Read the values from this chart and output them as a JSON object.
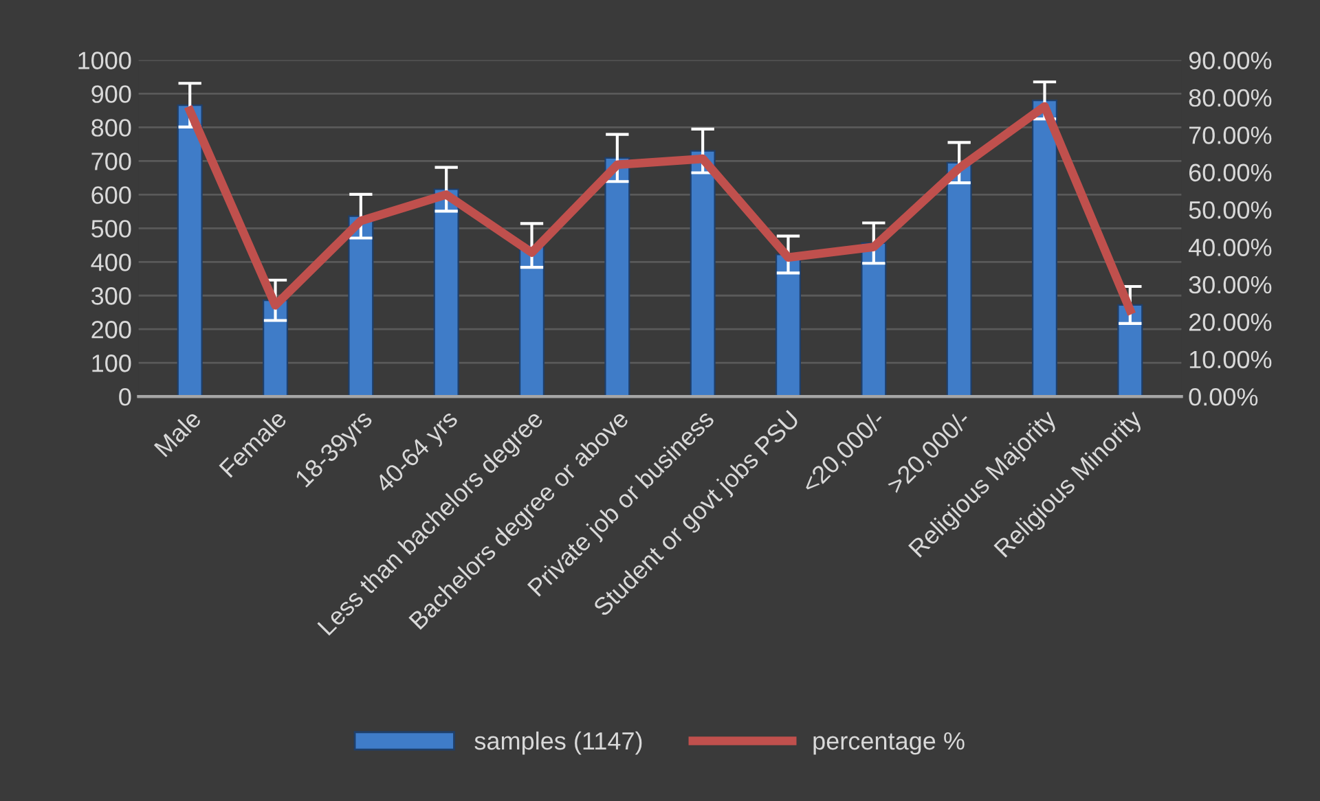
{
  "chart_data": {
    "type": "bar",
    "categories": [
      "Male",
      "Female",
      "18-39yrs",
      "40-64 yrs",
      "Less than bachelors degree",
      "Bachelors degree or above",
      "Private job or business",
      "Student or govt jobs PSU",
      "<20,000/-",
      ">20,000/-",
      "Religious Majority",
      "Religious Minority"
    ],
    "series": [
      {
        "name": "samples (1147)",
        "color": "#3f7cc8",
        "values": [
          866,
          286,
          536,
          616,
          449,
          709,
          730,
          422,
          456,
          695,
          880,
          272
        ],
        "errors": [
          65,
          60,
          65,
          65,
          65,
          70,
          65,
          55,
          60,
          60,
          55,
          55
        ]
      },
      {
        "name": "percentage %",
        "type": "line",
        "axis": "y2",
        "color": "#c0504d",
        "values": [
          76.5,
          24.4,
          47.0,
          54.0,
          38.5,
          62.0,
          63.6,
          37.2,
          40.0,
          61.1,
          77.6,
          23.1
        ]
      }
    ],
    "ylim": [
      0,
      1000
    ],
    "yticks": [
      0,
      100,
      200,
      300,
      400,
      500,
      600,
      700,
      800,
      900,
      1000
    ],
    "y2lim": [
      0,
      90
    ],
    "y2ticks": [
      {
        "value": 0,
        "label": "0.00%"
      },
      {
        "value": 10,
        "label": "10.00%"
      },
      {
        "value": 20,
        "label": "20.00%"
      },
      {
        "value": 30,
        "label": "30.00%"
      },
      {
        "value": 40,
        "label": "40.00%"
      },
      {
        "value": 50,
        "label": "50.00%"
      },
      {
        "value": 60,
        "label": "60.00%"
      },
      {
        "value": 70,
        "label": "70.00%"
      },
      {
        "value": 80,
        "label": "80.00%"
      },
      {
        "value": 90,
        "label": "90.00%"
      }
    ],
    "grid": "y",
    "legend": "bottom",
    "marker": "none",
    "line_style": "solid"
  }
}
